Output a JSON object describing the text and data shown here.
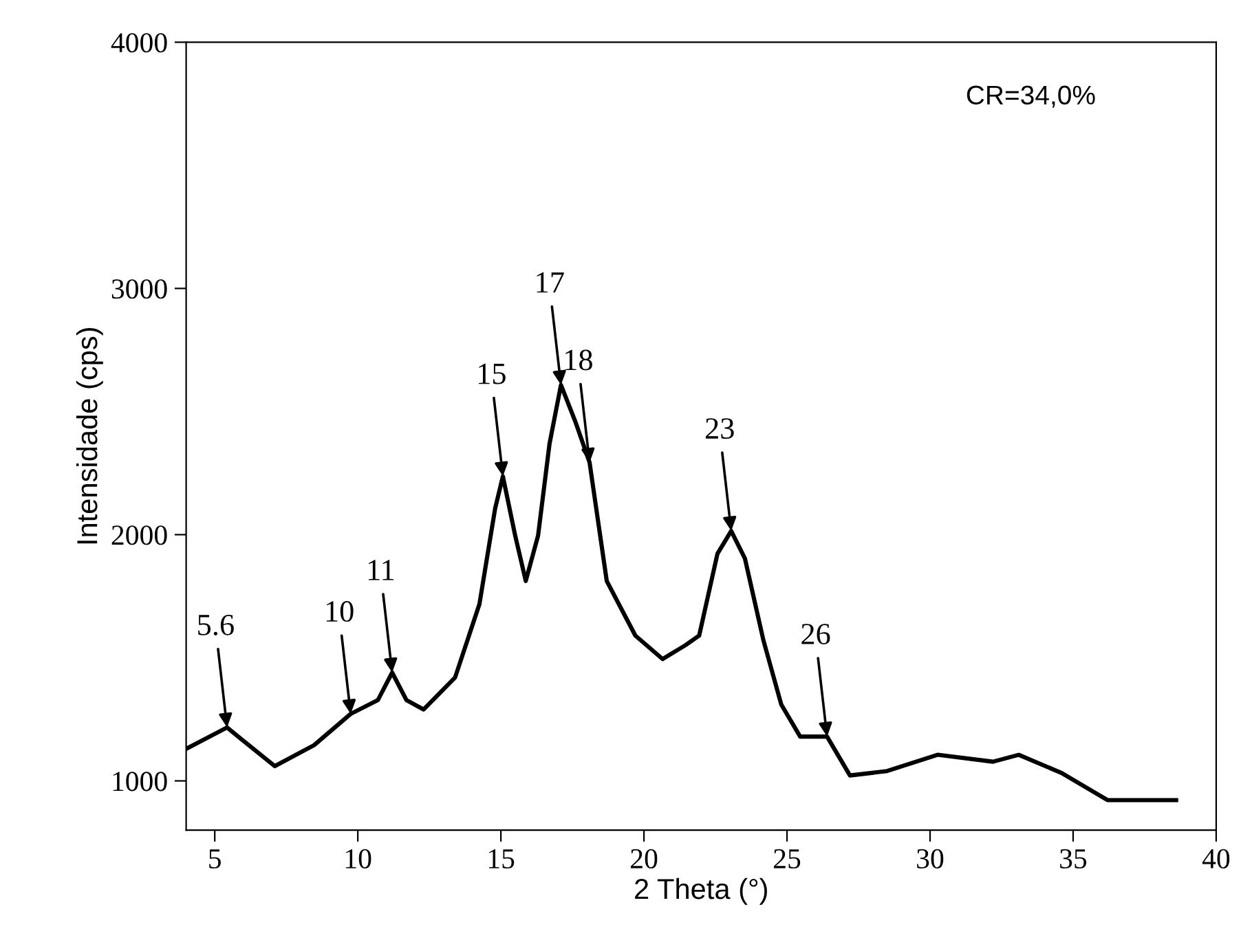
{
  "chart_data": {
    "type": "line",
    "xlabel": "2 Theta (°)",
    "ylabel": "Intensidade (cps)",
    "xlim": [
      4,
      40
    ],
    "ylim": [
      800,
      4000
    ],
    "xticks": [
      5,
      10,
      15,
      20,
      25,
      30,
      35,
      40
    ],
    "yticks": [
      1000,
      2000,
      3000,
      4000
    ],
    "grid": false,
    "legend": false,
    "marker": "none",
    "line_style": "solid",
    "series": [
      {
        "color": "#000000",
        "x": [
          4.0,
          5.43,
          5.9,
          7.1,
          8.47,
          9.75,
          10.7,
          11.2,
          11.7,
          12.3,
          13.4,
          14.25,
          14.8,
          15.07,
          15.5,
          15.87,
          16.3,
          16.7,
          17.1,
          17.6,
          18.1,
          18.7,
          19.7,
          20.65,
          21.45,
          21.93,
          22.57,
          23.05,
          23.53,
          24.18,
          24.8,
          25.46,
          26.4,
          27.2,
          28.5,
          30.26,
          32.2,
          33.1,
          34.6,
          36.2,
          38.6
        ],
        "values": [
          1130,
          1217,
          1172,
          1060,
          1145,
          1272,
          1328,
          1440,
          1328,
          1290,
          1420,
          1718,
          2107,
          2237,
          1996,
          1812,
          1996,
          2369,
          2608,
          2460,
          2293,
          1812,
          1590,
          1495,
          1551,
          1590,
          1923,
          2015,
          1903,
          1569,
          1310,
          1180,
          1180,
          1022,
          1040,
          1106,
          1078,
          1106,
          1032,
          922,
          922
        ]
      }
    ],
    "annotations": [
      {
        "text": "5.6",
        "x": 5.43,
        "y": 1217
      },
      {
        "text": "10",
        "x": 9.75,
        "y": 1272
      },
      {
        "text": "11",
        "x": 11.2,
        "y": 1440
      },
      {
        "text": "15",
        "x": 15.07,
        "y": 2237
      },
      {
        "text": "17",
        "x": 17.1,
        "y": 2608
      },
      {
        "text": "18",
        "x": 18.1,
        "y": 2293
      },
      {
        "text": "23",
        "x": 23.05,
        "y": 2015
      },
      {
        "text": "26",
        "x": 26.4,
        "y": 1180
      },
      "CR=34,0%"
    ]
  }
}
